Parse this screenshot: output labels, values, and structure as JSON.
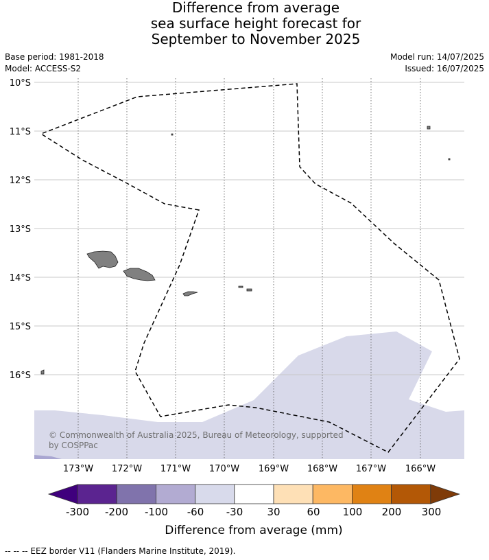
{
  "title": {
    "line1": "Difference from average",
    "line2": "sea surface height forecast for",
    "line3": "September to November 2025"
  },
  "meta": {
    "base_period": "Base period: 1981-2018",
    "model": "Model: ACCESS-S2",
    "model_run": "Model run: 14/07/2025",
    "issued": "Issued: 16/07/2025"
  },
  "map": {
    "lat_labels": [
      "10°S",
      "11°S",
      "12°S",
      "13°S",
      "14°S",
      "15°S",
      "16°S"
    ],
    "lon_labels": [
      "173°W",
      "172°W",
      "171°W",
      "170°W",
      "169°W",
      "168°W",
      "167°W",
      "166°W"
    ],
    "copyright_line1": "© Commonwealth of Australia 2025, Bureau of Meteorology, supported",
    "copyright_line2": "by COSPPac",
    "colors": {
      "land": "#808080",
      "anomaly_fill": "#d8d9ea",
      "anomaly_dark": "#a9a6d1",
      "grid": "#c8c8c8",
      "eez": "#000000"
    }
  },
  "colorbar": {
    "ticks": [
      "-300",
      "-200",
      "-100",
      "-60",
      "-30",
      "30",
      "60",
      "100",
      "200",
      "300"
    ],
    "colors": [
      "#3f007d",
      "#5b2490",
      "#8073ac",
      "#b2abd2",
      "#d8daeb",
      "#ffffff",
      "#fee0b6",
      "#fdb863",
      "#e08214",
      "#b35806",
      "#7f3b08"
    ],
    "label": "Difference from average (mm)"
  },
  "footer": {
    "legend_text": "--  --  -- EEZ border V11 (Flanders Marine Institute, 2019)."
  }
}
